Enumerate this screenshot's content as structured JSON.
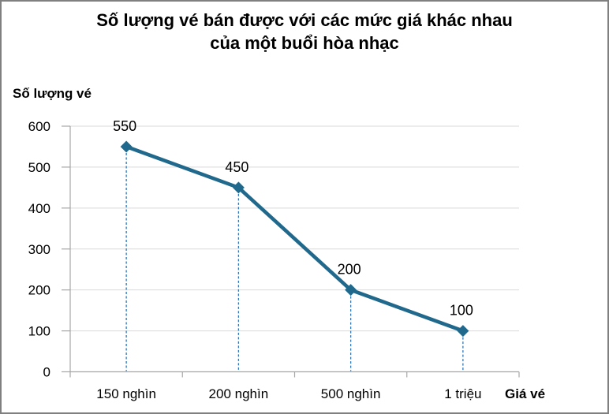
{
  "window": {
    "background": "#ffffff",
    "border_color": "#808080"
  },
  "title_lines": {
    "line1": "Số lượng vé bán được với các mức giá khác nhau",
    "line2": "của một buổi hòa nhạc"
  },
  "chart_data": {
    "type": "line",
    "title": "Số lượng vé bán được với các mức giá khác nhau của một buổi hòa nhạc",
    "xlabel": "Giá vé",
    "ylabel": "Số lượng vé",
    "categories": [
      "150 nghìn",
      "200 nghìn",
      "500 nghìn",
      "1 triệu"
    ],
    "values": [
      550,
      450,
      200,
      100
    ],
    "data_labels": [
      "550",
      "450",
      "200",
      "100"
    ],
    "y_ticks": [
      0,
      100,
      200,
      300,
      400,
      500,
      600
    ],
    "ylim": [
      0,
      600
    ],
    "grid": true,
    "legend_position": "none",
    "marker": "diamond",
    "drop_lines": "dashed",
    "colors": {
      "line": "#20698C",
      "marker": "#20698C",
      "drop_line": "#2E75B6",
      "gridline": "#D9D9D9",
      "axis": "#A6A6A6",
      "text": "#000000"
    }
  }
}
